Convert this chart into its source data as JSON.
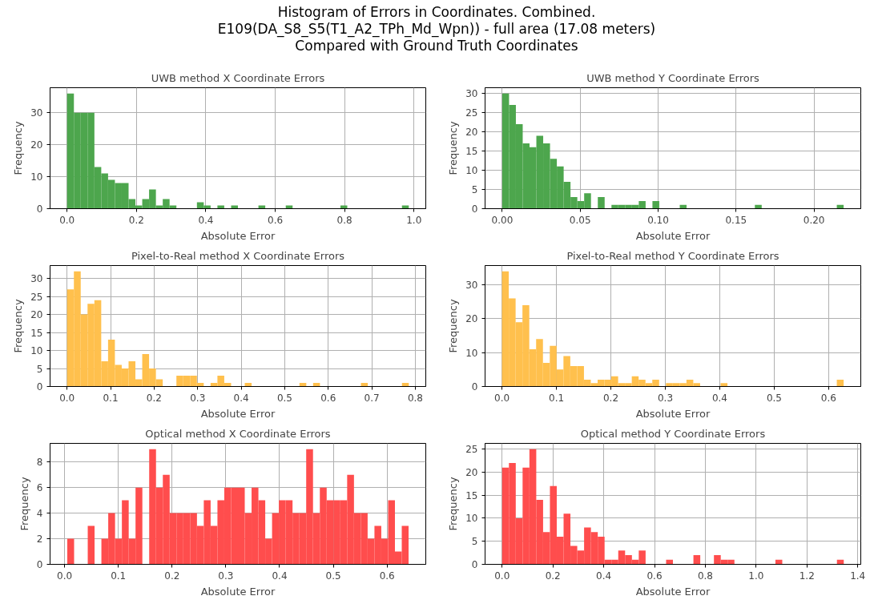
{
  "chart_data": [
    {
      "type": "other",
      "title": "Histogram of Errors in Coordinates. Combined.\nE109(DA_S8_S5(T1_A2_TPh_Md_Wpn)) - full area (17.08 meters)\nCompared with Ground Truth Coordinates"
    },
    {
      "type": "histogram",
      "title": "UWB method X Coordinate Errors",
      "xlabel": "Absolute Error",
      "ylabel": "Frequency",
      "color": "#4da64d",
      "grid": true,
      "bins": [
        0,
        0.0197,
        0.0394,
        0.0591,
        0.0788,
        0.0985,
        0.1182,
        0.1379,
        0.1576,
        0.1773,
        0.197,
        0.2167,
        0.2364,
        0.2561,
        0.2758,
        0.2955,
        0.3152,
        0.3349,
        0.3546,
        0.3743,
        0.394,
        0.4137,
        0.4334,
        0.4531,
        0.4728,
        0.4925,
        0.5122,
        0.5319,
        0.5516,
        0.5713,
        0.591,
        0.6107,
        0.6304,
        0.6501,
        0.6698,
        0.6895,
        0.7092,
        0.7289,
        0.7486,
        0.7683,
        0.788,
        0.8077,
        0.8274,
        0.8471,
        0.8668,
        0.8865,
        0.9062,
        0.9259,
        0.9456,
        0.9653,
        0.985
      ],
      "values": [
        36,
        30,
        30,
        30,
        13,
        11,
        9,
        8,
        8,
        3,
        1,
        3,
        6,
        1,
        3,
        1,
        0,
        0,
        0,
        2,
        1,
        0,
        1,
        0,
        1,
        0,
        0,
        0,
        1,
        0,
        0,
        0,
        1,
        0,
        0,
        0,
        0,
        0,
        0,
        0,
        1,
        0,
        0,
        0,
        0,
        0,
        0,
        0,
        0,
        1
      ],
      "xlim": [
        -0.049,
        1.034
      ],
      "ylim": [
        0,
        37.8
      ],
      "xticks": [
        {
          "value": 0,
          "label": "0.0"
        },
        {
          "value": 0.2,
          "label": "0.2"
        },
        {
          "value": 0.4,
          "label": "0.4"
        },
        {
          "value": 0.6,
          "label": "0.6"
        },
        {
          "value": 0.8,
          "label": "0.8"
        },
        {
          "value": 1,
          "label": "1.0"
        }
      ],
      "yticks": [
        0,
        10,
        20,
        30
      ]
    },
    {
      "type": "histogram",
      "title": "UWB method Y Coordinate Errors",
      "xlabel": "Absolute Error",
      "ylabel": "Frequency",
      "color": "#4da64d",
      "grid": true,
      "bins": [
        0,
        0.00438,
        0.00876,
        0.01314,
        0.01752,
        0.0219,
        0.02628,
        0.03066,
        0.03504,
        0.03942,
        0.0438,
        0.04818,
        0.05256,
        0.05694,
        0.06132,
        0.0657,
        0.07008,
        0.07446,
        0.07884,
        0.08322,
        0.0876,
        0.09198,
        0.09636,
        0.10074,
        0.10512,
        0.1095,
        0.11388,
        0.11826,
        0.12264,
        0.12702,
        0.1314,
        0.13578,
        0.14016,
        0.14454,
        0.14892,
        0.1533,
        0.15768,
        0.16206,
        0.16644,
        0.17082,
        0.1752,
        0.17958,
        0.18396,
        0.18834,
        0.19272,
        0.1971,
        0.20148,
        0.20586,
        0.21024,
        0.21462,
        0.219
      ],
      "values": [
        30,
        27,
        22,
        17,
        16,
        19,
        17,
        13,
        11,
        7,
        3,
        2,
        4,
        0,
        3,
        0,
        1,
        1,
        1,
        1,
        2,
        0,
        2,
        0,
        0,
        0,
        1,
        0,
        0,
        0,
        0,
        0,
        0,
        0,
        0,
        0,
        0,
        1,
        0,
        0,
        0,
        0,
        0,
        0,
        0,
        0,
        0,
        0,
        0,
        1
      ],
      "xlim": [
        -0.011,
        0.23
      ],
      "ylim": [
        0,
        31.5
      ],
      "xticks": [
        {
          "value": 0,
          "label": "0.00"
        },
        {
          "value": 0.05,
          "label": "0.05"
        },
        {
          "value": 0.1,
          "label": "0.10"
        },
        {
          "value": 0.15,
          "label": "0.15"
        },
        {
          "value": 0.2,
          "label": "0.20"
        }
      ],
      "yticks": [
        0,
        5,
        10,
        15,
        20,
        25,
        30
      ]
    },
    {
      "type": "histogram",
      "title": "Pixel-to-Real method X Coordinate Errors",
      "xlabel": "Absolute Error",
      "ylabel": "Frequency",
      "color": "#ffc04d",
      "grid": true,
      "bins": [
        0,
        0.0157,
        0.0314,
        0.0471,
        0.0628,
        0.0785,
        0.0942,
        0.1099,
        0.1256,
        0.1413,
        0.157,
        0.1727,
        0.1884,
        0.2041,
        0.2198,
        0.2355,
        0.2512,
        0.2669,
        0.2826,
        0.2983,
        0.314,
        0.3297,
        0.3454,
        0.3611,
        0.3768,
        0.3925,
        0.4082,
        0.4239,
        0.4396,
        0.4553,
        0.471,
        0.4867,
        0.5024,
        0.5181,
        0.5338,
        0.5495,
        0.5652,
        0.5809,
        0.5966,
        0.6123,
        0.628,
        0.6437,
        0.6594,
        0.6751,
        0.6908,
        0.7065,
        0.7222,
        0.7379,
        0.7536,
        0.7693,
        0.785
      ],
      "values": [
        27,
        32,
        20,
        23,
        24,
        7,
        13,
        6,
        5,
        7,
        2,
        9,
        5,
        2,
        0,
        0,
        3,
        3,
        3,
        1,
        0,
        1,
        3,
        1,
        0,
        0,
        1,
        0,
        0,
        0,
        0,
        0,
        0,
        0,
        1,
        0,
        1,
        0,
        0,
        0,
        0,
        0,
        0,
        1,
        0,
        0,
        0,
        0,
        0,
        1
      ],
      "xlim": [
        -0.039,
        0.824
      ],
      "ylim": [
        0,
        33.6
      ],
      "xticks": [
        {
          "value": 0,
          "label": "0.0"
        },
        {
          "value": 0.1,
          "label": "0.1"
        },
        {
          "value": 0.2,
          "label": "0.2"
        },
        {
          "value": 0.3,
          "label": "0.3"
        },
        {
          "value": 0.4,
          "label": "0.4"
        },
        {
          "value": 0.5,
          "label": "0.5"
        },
        {
          "value": 0.6,
          "label": "0.6"
        },
        {
          "value": 0.7,
          "label": "0.7"
        },
        {
          "value": 0.8,
          "label": "0.8"
        }
      ],
      "yticks": [
        0,
        5,
        10,
        15,
        20,
        25,
        30
      ]
    },
    {
      "type": "histogram",
      "title": "Pixel-to-Real method Y Coordinate Errors",
      "xlabel": "Absolute Error",
      "ylabel": "Frequency",
      "color": "#ffc04d",
      "grid": true,
      "bins": [
        0,
        0.01255,
        0.0251,
        0.03765,
        0.0502,
        0.06275,
        0.0753,
        0.08785,
        0.1004,
        0.11295,
        0.1255,
        0.13805,
        0.1506,
        0.16315,
        0.1757,
        0.18825,
        0.2008,
        0.21335,
        0.2259,
        0.23845,
        0.251,
        0.26355,
        0.2761,
        0.28865,
        0.3012,
        0.31375,
        0.3263,
        0.33885,
        0.3514,
        0.36395,
        0.3765,
        0.38905,
        0.4016,
        0.41415,
        0.4267,
        0.43925,
        0.4518,
        0.46435,
        0.4769,
        0.48945,
        0.502,
        0.51455,
        0.5271,
        0.53965,
        0.5522,
        0.56475,
        0.5773,
        0.58985,
        0.6024,
        0.61495,
        0.6275
      ],
      "values": [
        34,
        26,
        19,
        24,
        11,
        14,
        7,
        12,
        5,
        9,
        6,
        6,
        2,
        1,
        2,
        2,
        3,
        1,
        1,
        3,
        2,
        1,
        2,
        0,
        1,
        1,
        1,
        2,
        1,
        0,
        0,
        0,
        1,
        0,
        0,
        0,
        0,
        0,
        0,
        0,
        0,
        0,
        0,
        0,
        0,
        0,
        0,
        0,
        0,
        2
      ],
      "xlim": [
        -0.031,
        0.659
      ],
      "ylim": [
        0,
        35.7
      ],
      "xticks": [
        {
          "value": 0,
          "label": "0.0"
        },
        {
          "value": 0.1,
          "label": "0.1"
        },
        {
          "value": 0.2,
          "label": "0.2"
        },
        {
          "value": 0.3,
          "label": "0.3"
        },
        {
          "value": 0.4,
          "label": "0.4"
        },
        {
          "value": 0.5,
          "label": "0.5"
        },
        {
          "value": 0.6,
          "label": "0.6"
        }
      ],
      "yticks": [
        0,
        10,
        20,
        30
      ]
    },
    {
      "type": "histogram",
      "title": "Optical method X Coordinate Errors",
      "xlabel": "Absolute Error",
      "ylabel": "Frequency",
      "color": "#ff4d4d",
      "grid": true,
      "bins": [
        0.005,
        0.0177,
        0.0304,
        0.0431,
        0.0558,
        0.0685,
        0.0812,
        0.0939,
        0.1066,
        0.1193,
        0.132,
        0.1447,
        0.1574,
        0.1701,
        0.1828,
        0.1955,
        0.2082,
        0.2209,
        0.2336,
        0.2463,
        0.259,
        0.2717,
        0.2844,
        0.2971,
        0.3098,
        0.3225,
        0.3352,
        0.3479,
        0.3606,
        0.3733,
        0.386,
        0.3987,
        0.4114,
        0.4241,
        0.4368,
        0.4495,
        0.4622,
        0.4749,
        0.4876,
        0.5003,
        0.513,
        0.5257,
        0.5384,
        0.5511,
        0.5638,
        0.5765,
        0.5892,
        0.6019,
        0.6146,
        0.6273,
        0.64
      ],
      "values": [
        2,
        0,
        0,
        3,
        0,
        2,
        4,
        2,
        5,
        2,
        6,
        0,
        9,
        6,
        7,
        4,
        4,
        4,
        4,
        3,
        5,
        3,
        5,
        6,
        6,
        6,
        4,
        6,
        5,
        2,
        4,
        5,
        5,
        4,
        4,
        9,
        4,
        6,
        5,
        5,
        5,
        7,
        4,
        4,
        2,
        3,
        2,
        5,
        1,
        3
      ],
      "xlim": [
        -0.027,
        0.672
      ],
      "ylim": [
        0,
        9.45
      ],
      "xticks": [
        {
          "value": 0,
          "label": "0.0"
        },
        {
          "value": 0.1,
          "label": "0.1"
        },
        {
          "value": 0.2,
          "label": "0.2"
        },
        {
          "value": 0.3,
          "label": "0.3"
        },
        {
          "value": 0.4,
          "label": "0.4"
        },
        {
          "value": 0.5,
          "label": "0.5"
        },
        {
          "value": 0.6,
          "label": "0.6"
        }
      ],
      "yticks": [
        0,
        2,
        4,
        6,
        8
      ]
    },
    {
      "type": "histogram",
      "title": "Optical method Y Coordinate Errors",
      "xlabel": "Absolute Error",
      "ylabel": "Frequency",
      "color": "#ff4d4d",
      "grid": true,
      "bins": [
        0,
        0.0269,
        0.0538,
        0.0807,
        0.1076,
        0.1345,
        0.1614,
        0.1883,
        0.2152,
        0.2421,
        0.269,
        0.2959,
        0.3228,
        0.3497,
        0.3766,
        0.4035,
        0.4304,
        0.4573,
        0.4842,
        0.5111,
        0.538,
        0.5649,
        0.5918,
        0.6187,
        0.6456,
        0.6725,
        0.6994,
        0.7263,
        0.7532,
        0.7801,
        0.807,
        0.8339,
        0.8608,
        0.8877,
        0.9146,
        0.9415,
        0.9684,
        0.9953,
        1.0222,
        1.0491,
        1.076,
        1.1029,
        1.1298,
        1.1567,
        1.1836,
        1.2105,
        1.2374,
        1.2643,
        1.2912,
        1.3181,
        1.345
      ],
      "values": [
        21,
        22,
        10,
        21,
        25,
        14,
        7,
        17,
        6,
        11,
        4,
        3,
        8,
        7,
        6,
        1,
        1,
        3,
        2,
        1,
        3,
        0,
        0,
        0,
        1,
        0,
        0,
        0,
        2,
        0,
        0,
        2,
        1,
        1,
        0,
        0,
        0,
        0,
        0,
        0,
        1,
        0,
        0,
        0,
        0,
        0,
        0,
        0,
        0,
        1
      ],
      "xlim": [
        -0.067,
        1.412
      ],
      "ylim": [
        0,
        26.25
      ],
      "xticks": [
        {
          "value": 0,
          "label": "0.0"
        },
        {
          "value": 0.2,
          "label": "0.2"
        },
        {
          "value": 0.4,
          "label": "0.4"
        },
        {
          "value": 0.6,
          "label": "0.6"
        },
        {
          "value": 0.8,
          "label": "0.8"
        },
        {
          "value": 1,
          "label": "1.0"
        },
        {
          "value": 1.2,
          "label": "1.2"
        },
        {
          "value": 1.4,
          "label": "1.4"
        }
      ],
      "yticks": [
        0,
        5,
        10,
        15,
        20,
        25
      ]
    }
  ]
}
